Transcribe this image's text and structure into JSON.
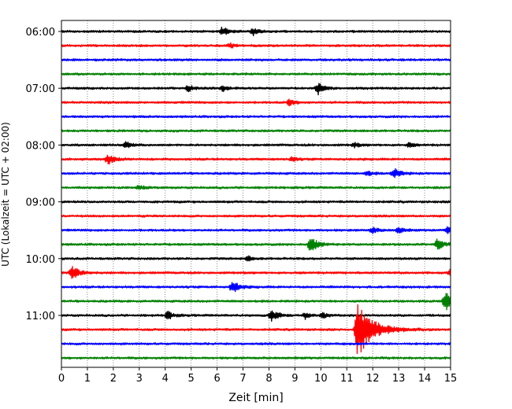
{
  "chart_data": {
    "type": "line",
    "xlabel": "Zeit  [min]",
    "ylabel": "UTC (Lokalzeit = UTC + 02:00)",
    "xlim": [
      0,
      15
    ],
    "x_ticks": [
      0,
      1,
      2,
      3,
      4,
      5,
      6,
      7,
      8,
      9,
      10,
      11,
      12,
      13,
      14,
      15
    ],
    "y_tick_labels": [
      "06:00",
      "07:00",
      "08:00",
      "09:00",
      "10:00",
      "11:00"
    ],
    "trace_interval_minutes": 15,
    "start_time": "06:00",
    "trace_count": 24,
    "trace_colors": [
      "#000000",
      "#ff0000",
      "#0000ff",
      "#008000"
    ],
    "grid": "vertical-dotted",
    "series": [
      {
        "start": "06:00",
        "color": "#000000",
        "events": [
          {
            "t": 6.2,
            "amp": 6
          },
          {
            "t": 7.4,
            "amp": 4
          }
        ]
      },
      {
        "start": "06:15",
        "color": "#ff0000",
        "events": [
          {
            "t": 6.5,
            "amp": 3
          }
        ]
      },
      {
        "start": "06:30",
        "color": "#0000ff",
        "events": []
      },
      {
        "start": "06:45",
        "color": "#008000",
        "events": []
      },
      {
        "start": "07:00",
        "color": "#000000",
        "events": [
          {
            "t": 4.9,
            "amp": 4
          },
          {
            "t": 6.2,
            "amp": 4
          },
          {
            "t": 9.9,
            "amp": 7
          }
        ]
      },
      {
        "start": "07:15",
        "color": "#ff0000",
        "events": [
          {
            "t": 8.8,
            "amp": 4
          }
        ]
      },
      {
        "start": "07:30",
        "color": "#0000ff",
        "events": []
      },
      {
        "start": "07:45",
        "color": "#008000",
        "events": []
      },
      {
        "start": "08:00",
        "color": "#000000",
        "events": [
          {
            "t": 2.5,
            "amp": 4
          },
          {
            "t": 11.3,
            "amp": 3
          },
          {
            "t": 13.4,
            "amp": 3
          }
        ]
      },
      {
        "start": "08:15",
        "color": "#ff0000",
        "events": [
          {
            "t": 1.8,
            "amp": 7
          },
          {
            "t": 8.9,
            "amp": 3
          }
        ]
      },
      {
        "start": "08:30",
        "color": "#0000ff",
        "events": [
          {
            "t": 11.8,
            "amp": 3
          },
          {
            "t": 12.8,
            "amp": 7
          }
        ]
      },
      {
        "start": "08:45",
        "color": "#008000",
        "events": [
          {
            "t": 3.0,
            "amp": 3
          }
        ]
      },
      {
        "start": "09:00",
        "color": "#000000",
        "events": []
      },
      {
        "start": "09:15",
        "color": "#ff0000",
        "events": []
      },
      {
        "start": "09:30",
        "color": "#0000ff",
        "events": [
          {
            "t": 12.0,
            "amp": 4
          },
          {
            "t": 13.0,
            "amp": 4
          },
          {
            "t": 14.9,
            "amp": 4
          }
        ]
      },
      {
        "start": "09:45",
        "color": "#008000",
        "events": [
          {
            "t": 9.6,
            "amp": 10
          },
          {
            "t": 14.5,
            "amp": 7
          }
        ]
      },
      {
        "start": "10:00",
        "color": "#000000",
        "events": [
          {
            "t": 7.2,
            "amp": 3
          }
        ]
      },
      {
        "start": "10:15",
        "color": "#ff0000",
        "events": [
          {
            "t": 0.4,
            "amp": 10
          },
          {
            "t": 15.0,
            "amp": 5
          }
        ]
      },
      {
        "start": "10:30",
        "color": "#0000ff",
        "events": [
          {
            "t": 6.6,
            "amp": 8
          }
        ]
      },
      {
        "start": "10:45",
        "color": "#008000",
        "events": [
          {
            "t": 14.8,
            "amp": 13
          }
        ]
      },
      {
        "start": "11:00",
        "color": "#000000",
        "events": [
          {
            "t": 4.1,
            "amp": 5
          },
          {
            "t": 8.1,
            "amp": 8
          },
          {
            "t": 9.4,
            "amp": 4
          },
          {
            "t": 10.1,
            "amp": 3
          }
        ]
      },
      {
        "start": "11:15",
        "color": "#ff0000",
        "events": [
          {
            "t": 11.4,
            "amp": 36
          }
        ]
      },
      {
        "start": "11:30",
        "color": "#0000ff",
        "events": []
      },
      {
        "start": "11:45",
        "color": "#008000",
        "events": []
      }
    ]
  }
}
